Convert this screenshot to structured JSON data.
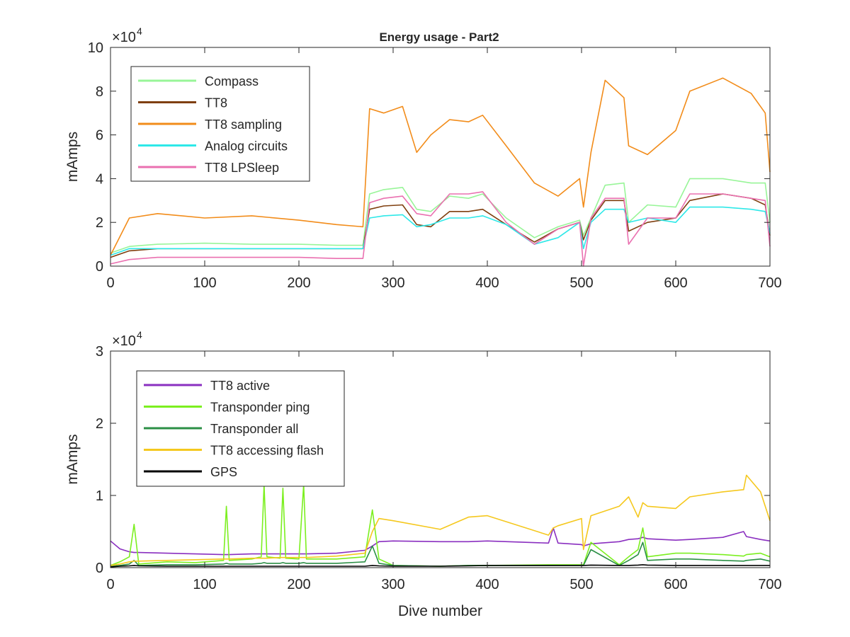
{
  "title": "Energy usage - Part2",
  "colors": {
    "Compass": "#98f598",
    "TT8": "#7f3f0f",
    "TT8 sampling": "#f28c1a",
    "Analog circuits": "#2ee8e8",
    "TT8 LPSleep": "#ea70b0",
    "TT8 active": "#8a2fc0",
    "Transponder ping": "#7cef20",
    "Transponder all": "#2b8f45",
    "TT8 accessing flash": "#f5c81e",
    "GPS": "#000000"
  },
  "chart_data": [
    {
      "type": "line",
      "title": "Energy usage - Part2",
      "xlabel": "",
      "ylabel": "mAmps",
      "xlim": [
        0,
        700
      ],
      "ylim": [
        0,
        100000
      ],
      "exponent_label": "×10",
      "exponent": "4",
      "xticks": [
        "0",
        "100",
        "200",
        "300",
        "400",
        "500",
        "600",
        "700"
      ],
      "yticks": [
        "0",
        "2",
        "4",
        "6",
        "8",
        "10"
      ],
      "legend_position": "top-left",
      "x": [
        0,
        20,
        50,
        100,
        150,
        200,
        240,
        268,
        275,
        290,
        310,
        325,
        340,
        360,
        380,
        395,
        420,
        450,
        475,
        498,
        502,
        510,
        525,
        545,
        550,
        570,
        600,
        615,
        650,
        680,
        695,
        700
      ],
      "series": [
        {
          "name": "Compass",
          "values": [
            6000,
            9000,
            10000,
            10500,
            10000,
            10000,
            9500,
            9500,
            33000,
            35000,
            36000,
            26000,
            25000,
            32000,
            31000,
            33000,
            22000,
            13000,
            18000,
            21000,
            14000,
            22000,
            37000,
            38000,
            20000,
            28000,
            27000,
            40000,
            40000,
            38000,
            38000,
            20000
          ]
        },
        {
          "name": "TT8",
          "values": [
            4000,
            7000,
            8000,
            8000,
            8000,
            8000,
            8000,
            8000,
            26000,
            27500,
            28000,
            19000,
            18000,
            25000,
            25000,
            26000,
            19000,
            11000,
            17000,
            20000,
            12000,
            21000,
            30000,
            30000,
            16000,
            20000,
            22000,
            30000,
            33000,
            31000,
            28000,
            14000
          ]
        },
        {
          "name": "TT8 sampling",
          "values": [
            5000,
            22000,
            24000,
            22000,
            23000,
            21000,
            19000,
            18000,
            72000,
            70000,
            73000,
            52000,
            60000,
            67000,
            66000,
            69000,
            55000,
            38000,
            32000,
            40000,
            27000,
            52000,
            85000,
            77000,
            55000,
            51000,
            62000,
            80000,
            86000,
            79000,
            70000,
            43000
          ]
        },
        {
          "name": "Analog circuits",
          "values": [
            5000,
            8000,
            8000,
            8000,
            8000,
            8000,
            8000,
            8000,
            22000,
            23000,
            23500,
            18000,
            19000,
            22000,
            22000,
            23000,
            19000,
            10000,
            13000,
            20000,
            8000,
            20000,
            26000,
            26000,
            20000,
            22000,
            20000,
            27000,
            27000,
            26000,
            25000,
            15000
          ]
        },
        {
          "name": "TT8 LPSleep",
          "values": [
            1000,
            3000,
            4000,
            4000,
            4000,
            4000,
            3500,
            3500,
            29000,
            31000,
            32000,
            24000,
            23000,
            33000,
            33000,
            34000,
            20000,
            10000,
            17000,
            20000,
            0,
            22000,
            31000,
            31000,
            10000,
            22000,
            22000,
            33000,
            33000,
            31000,
            30000,
            9000
          ]
        }
      ]
    },
    {
      "type": "line",
      "title": "",
      "xlabel": "Dive number",
      "ylabel": "mAmps",
      "xlim": [
        0,
        700
      ],
      "ylim": [
        0,
        30000
      ],
      "exponent_label": "×10",
      "exponent": "4",
      "xticks": [
        "0",
        "100",
        "200",
        "300",
        "400",
        "500",
        "600",
        "700"
      ],
      "yticks": [
        "0",
        "1",
        "2",
        "3"
      ],
      "legend_position": "top-left",
      "x": [
        0,
        10,
        20,
        25,
        30,
        60,
        90,
        120,
        123,
        126,
        150,
        160,
        163,
        166,
        180,
        183,
        186,
        200,
        205,
        208,
        240,
        270,
        278,
        285,
        300,
        350,
        380,
        400,
        465,
        470,
        475,
        500,
        502,
        510,
        540,
        550,
        560,
        565,
        570,
        600,
        615,
        650,
        672,
        675,
        690,
        700
      ],
      "series": [
        {
          "name": "TT8 active",
          "values": [
            3700,
            2600,
            2200,
            2100,
            2100,
            2000,
            1900,
            1800,
            1800,
            1800,
            1900,
            1900,
            1900,
            1900,
            1900,
            1900,
            1900,
            1900,
            1900,
            1900,
            2000,
            2400,
            3000,
            3600,
            3700,
            3600,
            3600,
            3700,
            3400,
            5500,
            3400,
            3200,
            3000,
            3300,
            3600,
            3900,
            4000,
            4200,
            4000,
            3800,
            3900,
            4200,
            5000,
            4300,
            3900,
            3700
          ]
        },
        {
          "name": "Transponder ping",
          "values": [
            300,
            800,
            1500,
            6000,
            500,
            800,
            700,
            1000,
            8500,
            1000,
            1200,
            1500,
            11500,
            1500,
            1300,
            11000,
            1300,
            1200,
            11500,
            1200,
            1200,
            1500,
            8000,
            1200,
            300,
            200,
            300,
            300,
            400,
            400,
            400,
            400,
            400,
            3500,
            400,
            1500,
            2500,
            5500,
            1500,
            2000,
            2000,
            1800,
            1600,
            1800,
            2000,
            1500
          ]
        },
        {
          "name": "Transponder all",
          "values": [
            200,
            300,
            500,
            1000,
            300,
            400,
            400,
            500,
            600,
            500,
            500,
            600,
            700,
            600,
            600,
            700,
            600,
            600,
            700,
            600,
            600,
            800,
            3000,
            600,
            300,
            200,
            300,
            300,
            300,
            300,
            300,
            300,
            300,
            2500,
            300,
            1000,
            1800,
            3500,
            1000,
            1200,
            1200,
            1000,
            900,
            1000,
            1200,
            900
          ]
        },
        {
          "name": "TT8 accessing flash",
          "values": [
            300,
            500,
            800,
            900,
            900,
            1000,
            1100,
            1200,
            1200,
            1200,
            1300,
            1300,
            1300,
            1300,
            1400,
            1400,
            1400,
            1400,
            1400,
            1400,
            1600,
            2000,
            5000,
            6800,
            6500,
            5300,
            7000,
            7200,
            4500,
            5500,
            5800,
            6800,
            2500,
            7200,
            8500,
            9800,
            7000,
            9000,
            8500,
            8200,
            9800,
            10500,
            10800,
            12800,
            10500,
            6500
          ]
        },
        {
          "name": "GPS",
          "values": [
            100,
            200,
            250,
            300,
            250,
            200,
            200,
            200,
            200,
            200,
            200,
            200,
            200,
            200,
            200,
            200,
            200,
            200,
            200,
            200,
            200,
            200,
            300,
            250,
            200,
            200,
            250,
            300,
            300,
            300,
            300,
            300,
            300,
            350,
            300,
            300,
            350,
            400,
            350,
            300,
            300,
            300,
            300,
            300,
            300,
            300
          ]
        }
      ]
    }
  ]
}
